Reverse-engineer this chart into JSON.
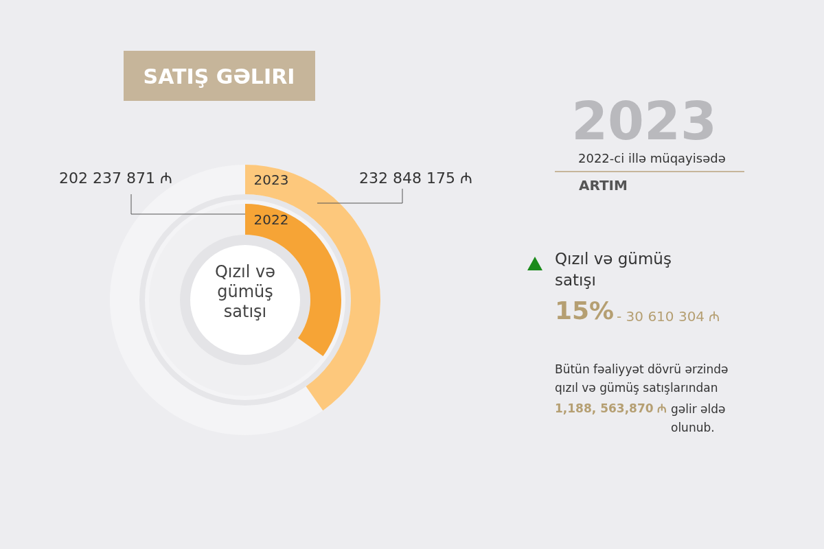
{
  "chart_data": {
    "type": "other",
    "title": "SATIŞ GƏLIRI",
    "subtitle": "Qızıl və gümüş satışı",
    "categories": [
      "2023",
      "2022"
    ],
    "values": [
      232848175,
      202237871
    ],
    "colors": [
      "#fdc87c",
      "#f6a436"
    ],
    "value_labels": [
      "232 848 175 ₼",
      "202 237 871 ₼"
    ],
    "annotations": [
      "2023",
      "2022-ci illə müqayisədə",
      "ARTIM",
      "Qızıl və gümüş satışı",
      "15%",
      "- 30 610 304 ₼",
      "Bütün fəaliyyət dövrü ərzində qızıl və gümüş satışlarından",
      "1,188, 563,870 ₼",
      "gəlir əldə olunub."
    ]
  }
}
